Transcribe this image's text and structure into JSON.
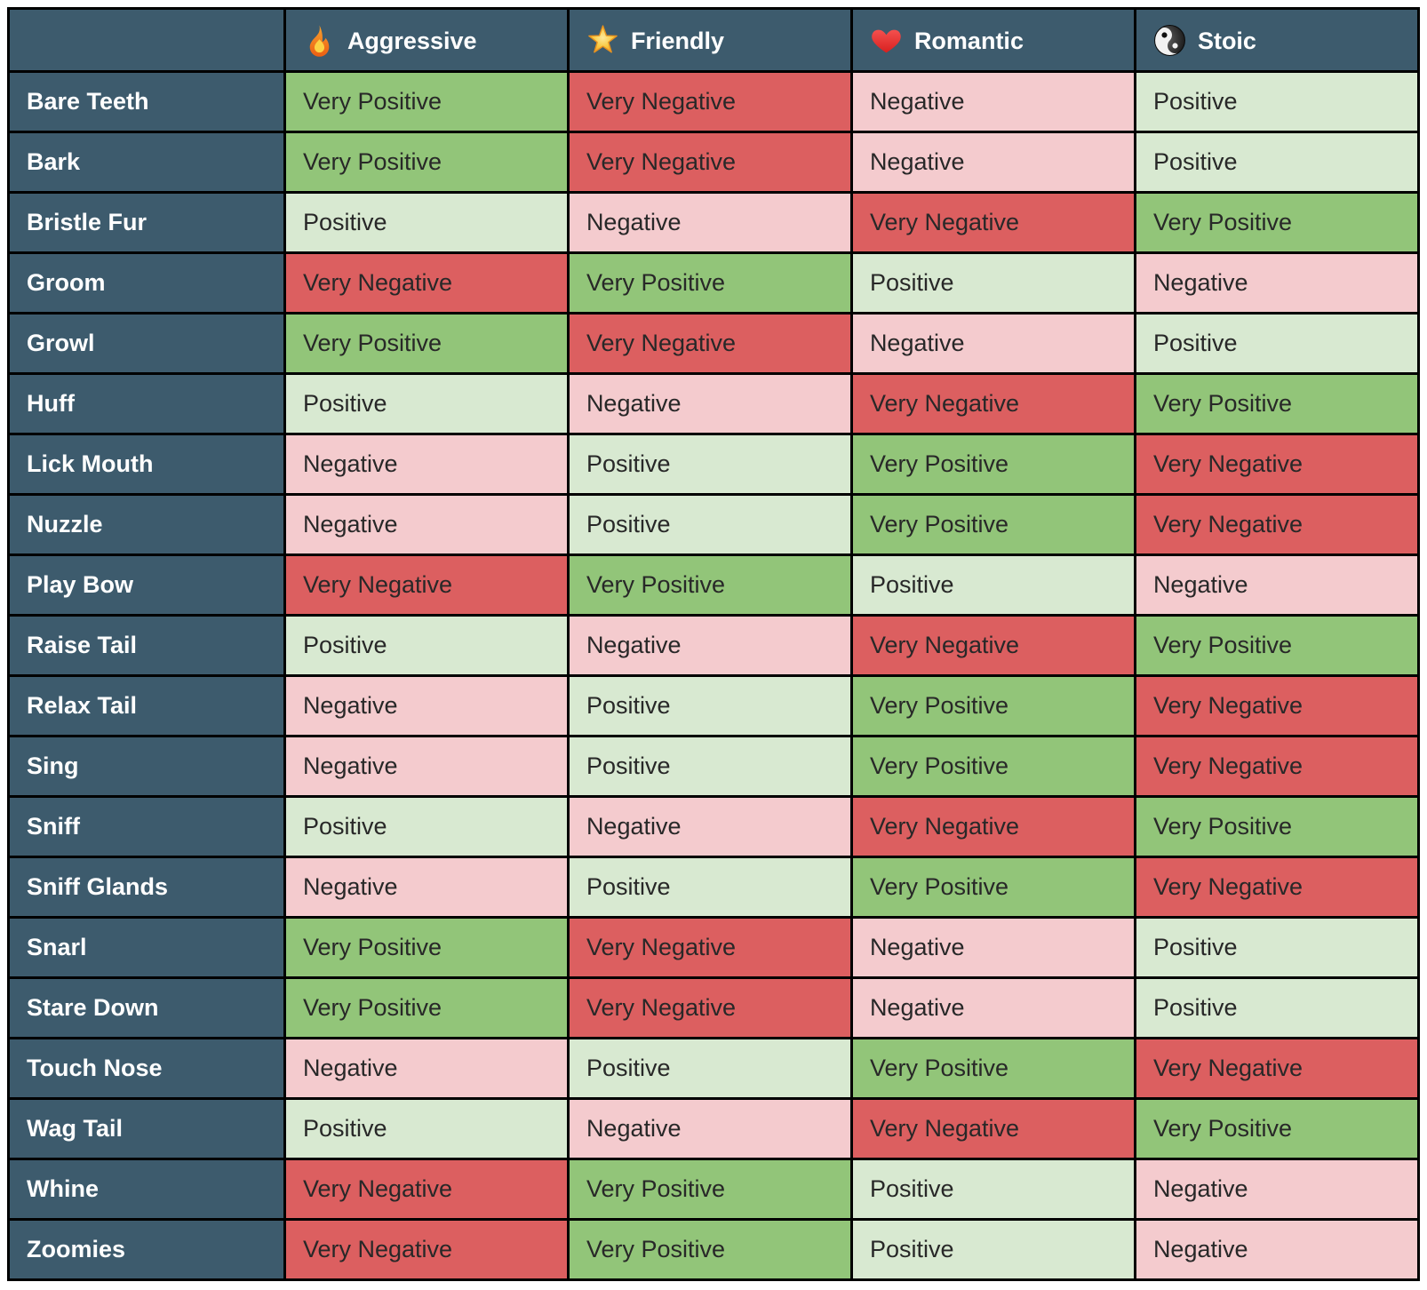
{
  "chart_data": {
    "type": "table",
    "corner_label": "",
    "columns": [
      {
        "label": "Aggressive",
        "icon": "fire-icon"
      },
      {
        "label": "Friendly",
        "icon": "star-icon"
      },
      {
        "label": "Romantic",
        "icon": "heart-icon"
      },
      {
        "label": "Stoic",
        "icon": "yinyang-icon"
      }
    ],
    "sentiment_scale": [
      "Very Negative",
      "Negative",
      "Positive",
      "Very Positive"
    ],
    "rows": [
      {
        "label": "Bare Teeth",
        "values": [
          "Very Positive",
          "Very Negative",
          "Negative",
          "Positive"
        ]
      },
      {
        "label": "Bark",
        "values": [
          "Very Positive",
          "Very Negative",
          "Negative",
          "Positive"
        ]
      },
      {
        "label": "Bristle Fur",
        "values": [
          "Positive",
          "Negative",
          "Very Negative",
          "Very Positive"
        ]
      },
      {
        "label": "Groom",
        "values": [
          "Very Negative",
          "Very Positive",
          "Positive",
          "Negative"
        ]
      },
      {
        "label": "Growl",
        "values": [
          "Very Positive",
          "Very Negative",
          "Negative",
          "Positive"
        ]
      },
      {
        "label": "Huff",
        "values": [
          "Positive",
          "Negative",
          "Very Negative",
          "Very Positive"
        ]
      },
      {
        "label": "Lick Mouth",
        "values": [
          "Negative",
          "Positive",
          "Very Positive",
          "Very Negative"
        ]
      },
      {
        "label": "Nuzzle",
        "values": [
          "Negative",
          "Positive",
          "Very Positive",
          "Very Negative"
        ]
      },
      {
        "label": "Play Bow",
        "values": [
          "Very Negative",
          "Very Positive",
          "Positive",
          "Negative"
        ]
      },
      {
        "label": "Raise Tail",
        "values": [
          "Positive",
          "Negative",
          "Very Negative",
          "Very Positive"
        ]
      },
      {
        "label": "Relax Tail",
        "values": [
          "Negative",
          "Positive",
          "Very Positive",
          "Very Negative"
        ]
      },
      {
        "label": "Sing",
        "values": [
          "Negative",
          "Positive",
          "Very Positive",
          "Very Negative"
        ]
      },
      {
        "label": "Sniff",
        "values": [
          "Positive",
          "Negative",
          "Very Negative",
          "Very Positive"
        ]
      },
      {
        "label": "Sniff Glands",
        "values": [
          "Negative",
          "Positive",
          "Very Positive",
          "Very Negative"
        ]
      },
      {
        "label": "Snarl",
        "values": [
          "Very Positive",
          "Very Negative",
          "Negative",
          "Positive"
        ]
      },
      {
        "label": "Stare Down",
        "values": [
          "Very Positive",
          "Very Negative",
          "Negative",
          "Positive"
        ]
      },
      {
        "label": "Touch Nose",
        "values": [
          "Negative",
          "Positive",
          "Very Positive",
          "Very Negative"
        ]
      },
      {
        "label": "Wag Tail",
        "values": [
          "Positive",
          "Negative",
          "Very Negative",
          "Very Positive"
        ]
      },
      {
        "label": "Whine",
        "values": [
          "Very Negative",
          "Very Positive",
          "Positive",
          "Negative"
        ]
      },
      {
        "label": "Zoomies",
        "values": [
          "Very Negative",
          "Very Positive",
          "Positive",
          "Negative"
        ]
      }
    ]
  },
  "colors": {
    "header_bg": "#3d5b6d",
    "header_text": "#ffffff",
    "cell_text": "#282828",
    "border": "#000000",
    "very_positive": "#92c579",
    "positive": "#d8e9d1",
    "negative": "#f4cbce",
    "very_negative": "#dc5f60"
  }
}
